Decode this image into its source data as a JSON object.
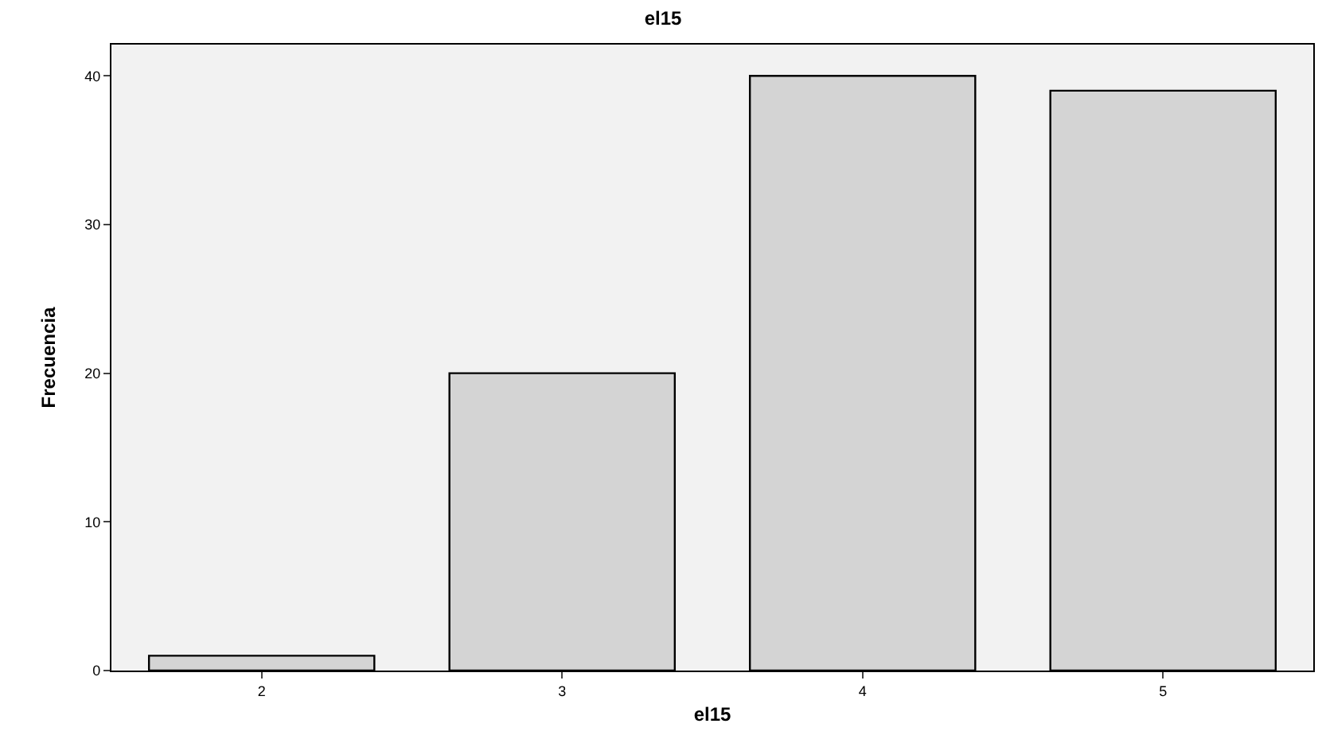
{
  "chart_data": {
    "type": "bar",
    "title": "el15",
    "xlabel": "el15",
    "ylabel": "Frecuencia",
    "categories": [
      "2",
      "3",
      "4",
      "5"
    ],
    "values": [
      1,
      20,
      40,
      39
    ],
    "color": "#d4d4d4",
    "ylim": [
      0,
      42.1
    ],
    "yticks": [
      0,
      10,
      20,
      30,
      40
    ],
    "grid": false,
    "legend": false
  }
}
